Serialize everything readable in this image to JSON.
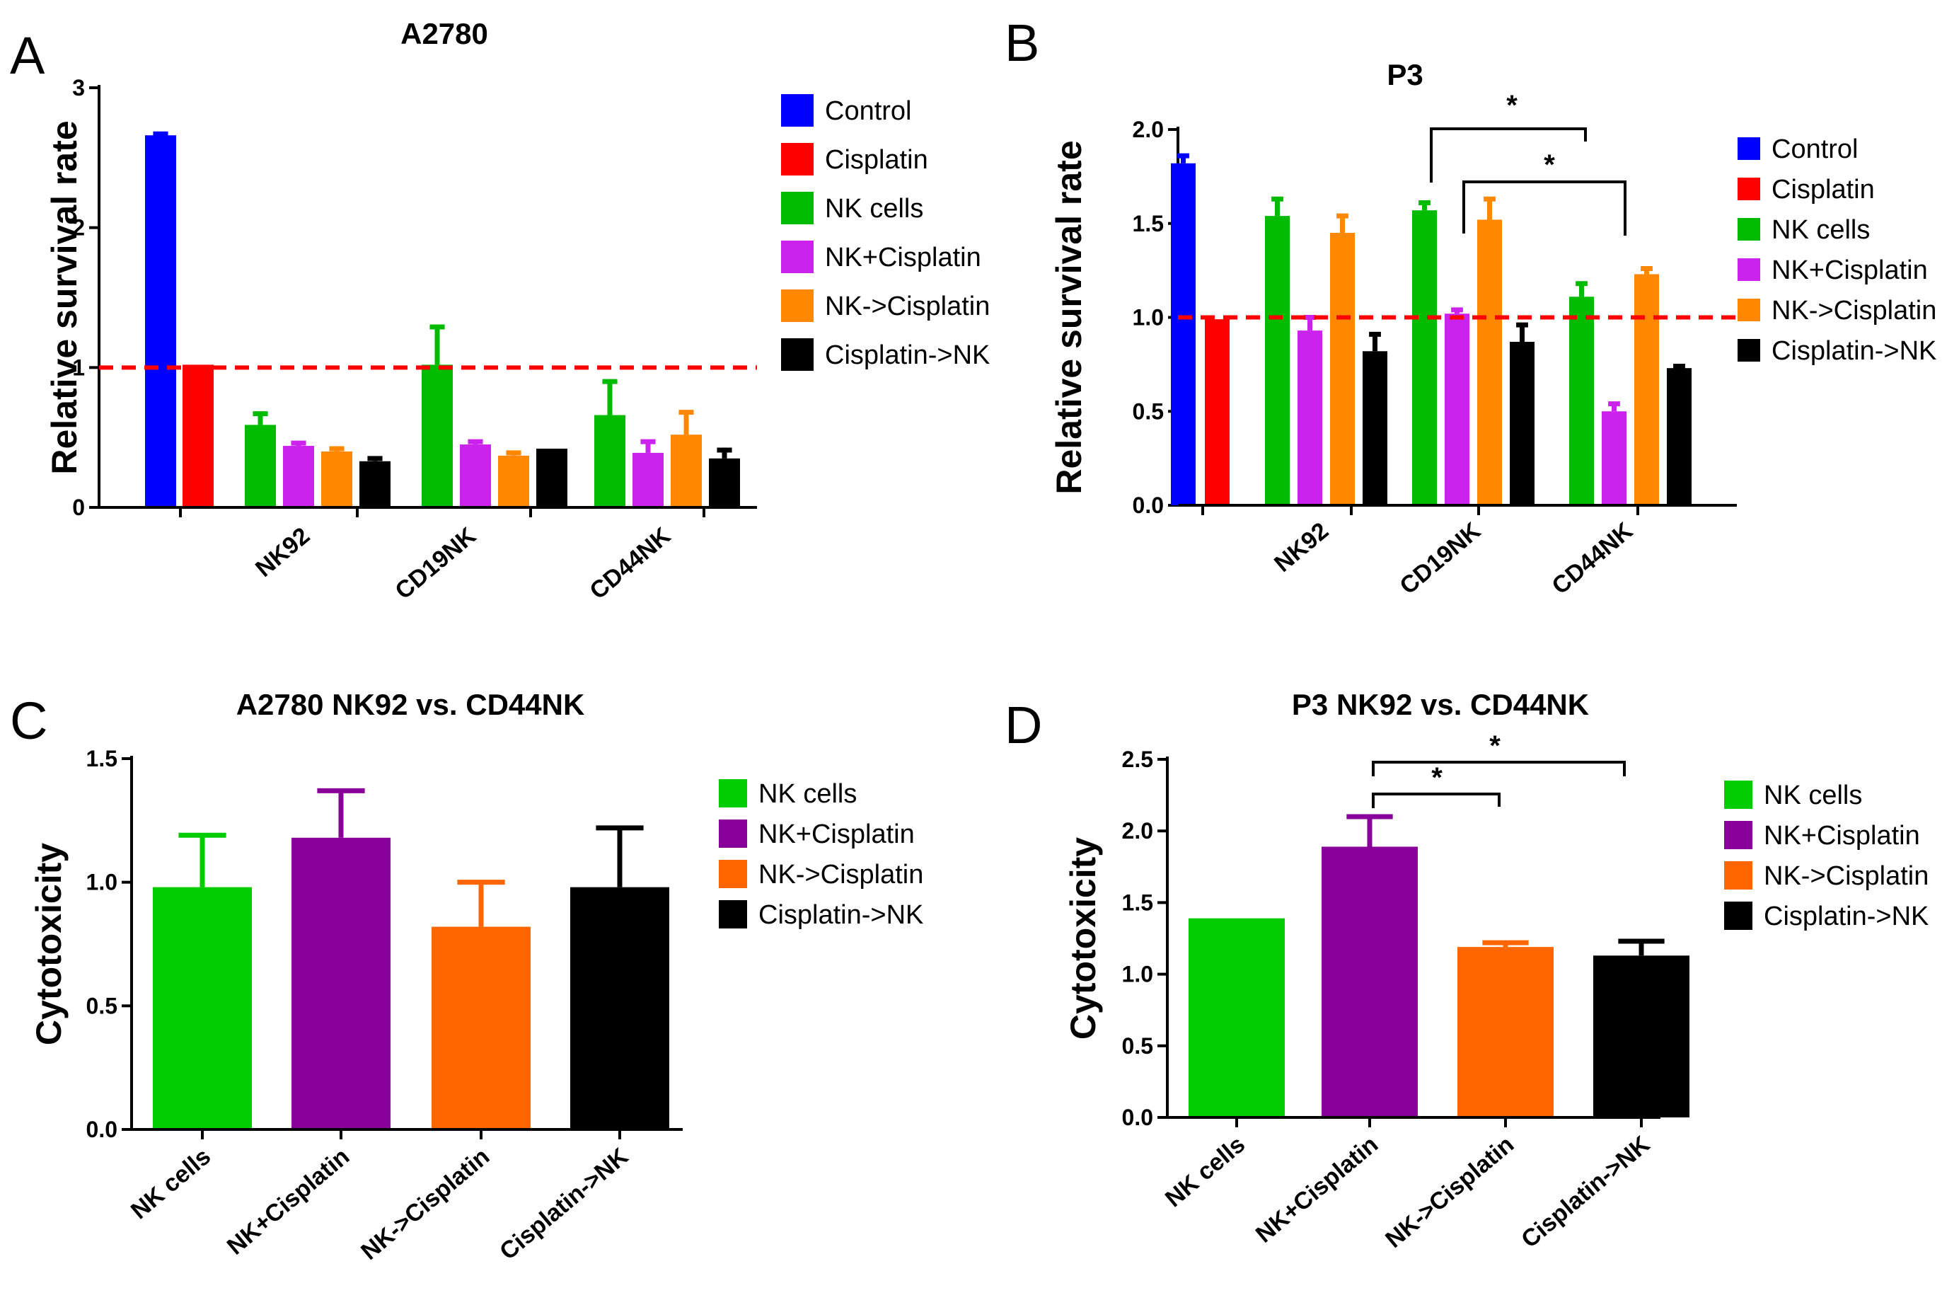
{
  "chart_data": [
    {
      "type": "bar",
      "panel_label": "A",
      "title": "A2780",
      "xlabel": "",
      "ylabel": "Relative survival rate",
      "ylim": [
        0,
        3
      ],
      "yticks": [
        "0",
        "1",
        "2",
        "3"
      ],
      "reference_line": 1.0,
      "single_groups": [
        {
          "name": "Control",
          "value": 2.66,
          "error": 0.01
        },
        {
          "name": "Cisplatin",
          "value": 1.02,
          "error": 0.0
        }
      ],
      "categories": [
        "NK92",
        "CD19NK",
        "CD44NK"
      ],
      "series": [
        {
          "name": "NK cells",
          "values": [
            0.59,
            1.02,
            0.66
          ],
          "errors": [
            0.08,
            0.27,
            0.24
          ]
        },
        {
          "name": "NK+Cisplatin",
          "values": [
            0.44,
            0.45,
            0.39
          ],
          "errors": [
            0.02,
            0.02,
            0.08
          ]
        },
        {
          "name": "NK->Cisplatin",
          "values": [
            0.4,
            0.37,
            0.52
          ],
          "errors": [
            0.02,
            0.02,
            0.16
          ]
        },
        {
          "name": "Cisplatin->NK",
          "values": [
            0.33,
            0.42,
            0.35
          ],
          "errors": [
            0.02,
            0.0,
            0.06
          ]
        }
      ],
      "legend": [
        "Control",
        "Cisplatin",
        "NK cells",
        "NK+Cisplatin",
        "NK->Cisplatin",
        "Cisplatin->NK"
      ],
      "legend_position": "right"
    },
    {
      "type": "bar",
      "panel_label": "B",
      "title": "P3",
      "xlabel": "",
      "ylabel": "Relative survival rate",
      "ylim": [
        0,
        2
      ],
      "yticks": [
        "0.0",
        "0.5",
        "1.0",
        "1.5",
        "2.0"
      ],
      "reference_line": 1.0,
      "single_groups": [
        {
          "name": "Control",
          "value": 1.82,
          "error": 0.04
        },
        {
          "name": "Cisplatin",
          "value": 0.99,
          "error": 0.0
        }
      ],
      "categories": [
        "NK92",
        "CD19NK",
        "CD44NK"
      ],
      "series": [
        {
          "name": "NK cells",
          "values": [
            1.54,
            1.57,
            1.11
          ],
          "errors": [
            0.09,
            0.04,
            0.07
          ]
        },
        {
          "name": "NK+Cisplatin",
          "values": [
            0.93,
            1.02,
            0.5
          ],
          "errors": [
            0.07,
            0.02,
            0.04
          ]
        },
        {
          "name": "NK->Cisplatin",
          "values": [
            1.45,
            1.52,
            1.23
          ],
          "errors": [
            0.09,
            0.11,
            0.03
          ]
        },
        {
          "name": "Cisplatin->NK",
          "values": [
            0.82,
            0.87,
            0.73
          ],
          "errors": [
            0.09,
            0.09,
            0.01
          ]
        }
      ],
      "significance": [
        {
          "label": "*",
          "from": "CD19NK / NK cells",
          "to": "CD44NK / NK cells"
        },
        {
          "label": "*",
          "from": "CD19NK / NK+Cisplatin",
          "to": "CD44NK / NK+Cisplatin"
        }
      ],
      "legend": [
        "Control",
        "Cisplatin",
        "NK cells",
        "NK+Cisplatin",
        "NK->Cisplatin",
        "Cisplatin->NK"
      ],
      "legend_position": "right"
    },
    {
      "type": "bar",
      "panel_label": "C",
      "title": "A2780  NK92 vs. CD44NK",
      "xlabel": "",
      "ylabel": "Cytotoxicity",
      "ylim": [
        0,
        1.5
      ],
      "yticks": [
        "0.0",
        "0.5",
        "1.0",
        "1.5"
      ],
      "categories": [
        "NK cells",
        "NK+Cisplatin",
        "NK->Cisplatin",
        "Cisplatin->NK"
      ],
      "values": [
        0.98,
        1.18,
        0.82,
        0.98
      ],
      "errors": [
        0.21,
        0.19,
        0.18,
        0.24
      ],
      "legend": [
        "NK cells",
        "NK+Cisplatin",
        "NK->Cisplatin",
        "Cisplatin->NK"
      ],
      "legend_position": "right"
    },
    {
      "type": "bar",
      "panel_label": "D",
      "title": "P3  NK92 vs. CD44NK",
      "xlabel": "",
      "ylabel": "Cytotoxicity",
      "ylim": [
        0,
        2.5
      ],
      "yticks": [
        "0.0",
        "0.5",
        "1.0",
        "1.5",
        "2.0",
        "2.5"
      ],
      "categories": [
        "NK cells",
        "NK+Cisplatin",
        "NK->Cisplatin",
        "Cisplatin->NK"
      ],
      "values": [
        1.39,
        1.89,
        1.19,
        1.13
      ],
      "errors": [
        0.0,
        0.21,
        0.03,
        0.1
      ],
      "significance": [
        {
          "label": "*",
          "from": "NK+Cisplatin",
          "to": "NK->Cisplatin"
        },
        {
          "label": "*",
          "from": "NK+Cisplatin",
          "to": "Cisplatin->NK"
        }
      ],
      "legend": [
        "NK cells",
        "NK+Cisplatin",
        "NK->Cisplatin",
        "Cisplatin->NK"
      ],
      "legend_position": "right"
    }
  ],
  "colors": {
    "Control": "#0000ff",
    "Cisplatin": "#ff0000",
    "NK cells (A,B)": "#00bb00",
    "NK+Cisplatin (A,B)": "#cc22ee",
    "NK->Cisplatin (A,B)": "#ff8800",
    "Cisplatin->NK (A,B)": "#000000",
    "NK cells (C,D)": "#00cc00",
    "NK+Cisplatin (C,D)": "#880099",
    "NK->Cisplatin (C,D)": "#ff6600",
    "Cisplatin->NK (C,D)": "#000000",
    "reference_line": "#ff0000"
  }
}
